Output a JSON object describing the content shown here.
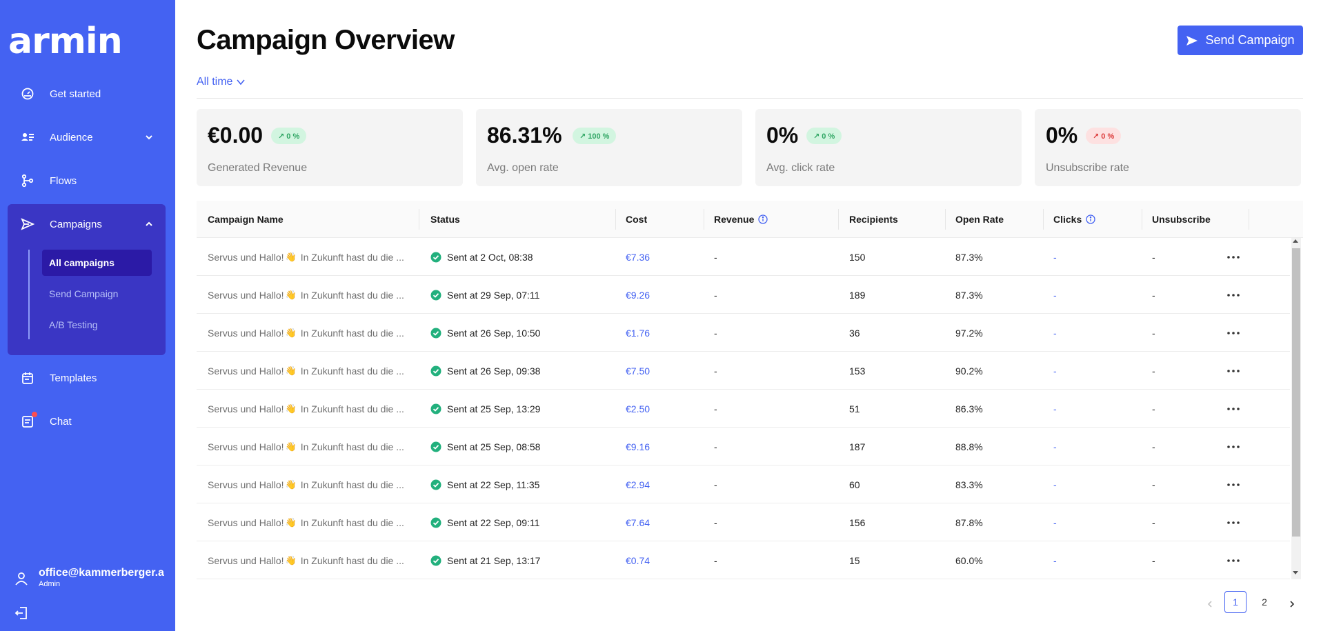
{
  "app": {
    "logo": "armin"
  },
  "sidebar": {
    "items": [
      {
        "label": "Get started",
        "icon": "gauge-icon"
      },
      {
        "label": "Audience",
        "icon": "contacts-icon"
      },
      {
        "label": "Flows",
        "icon": "flow-icon"
      },
      {
        "label": "Campaigns",
        "icon": "send-icon"
      },
      {
        "label": "Templates",
        "icon": "calendar-icon"
      },
      {
        "label": "Chat",
        "icon": "chat-icon"
      }
    ],
    "campaign_sub": [
      {
        "label": "All campaigns",
        "active": true
      },
      {
        "label": "Send Campaign",
        "active": false
      },
      {
        "label": "A/B Testing",
        "active": false
      }
    ],
    "user": {
      "email": "office@kammerberger.a",
      "role": "Admin"
    }
  },
  "header": {
    "title": "Campaign Overview",
    "send_button": "Send Campaign",
    "time_filter": "All time"
  },
  "stats": [
    {
      "value": "€0.00",
      "badge": "↗ 0 %",
      "label": "Generated Revenue",
      "tone": "green"
    },
    {
      "value": "86.31%",
      "badge": "↗ 100 %",
      "label": "Avg. open rate",
      "tone": "green"
    },
    {
      "value": "0%",
      "badge": "↗ 0 %",
      "label": "Avg. click rate",
      "tone": "green"
    },
    {
      "value": "0%",
      "badge": "↗ 0 %",
      "label": "Unsubscribe rate",
      "tone": "red"
    }
  ],
  "table": {
    "columns": [
      "Campaign Name",
      "Status",
      "Cost",
      "Revenue",
      "Recipients",
      "Open Rate",
      "Clicks",
      "Unsubscribe"
    ],
    "rows": [
      {
        "name": "Servus und Hallo!",
        "preview": "In Zukunft hast du die ...",
        "status": "Sent at 2 Oct, 08:38",
        "cost": "€7.36",
        "revenue": "-",
        "recipients": "150",
        "open_rate": "87.3%",
        "clicks": "-",
        "unsubscribe": "-"
      },
      {
        "name": "Servus und Hallo!",
        "preview": "In Zukunft hast du die ...",
        "status": "Sent at 29 Sep, 07:11",
        "cost": "€9.26",
        "revenue": "-",
        "recipients": "189",
        "open_rate": "87.3%",
        "clicks": "-",
        "unsubscribe": "-"
      },
      {
        "name": "Servus und Hallo!",
        "preview": "In Zukunft hast du die ...",
        "status": "Sent at 26 Sep, 10:50",
        "cost": "€1.76",
        "revenue": "-",
        "recipients": "36",
        "open_rate": "97.2%",
        "clicks": "-",
        "unsubscribe": "-"
      },
      {
        "name": "Servus und Hallo!",
        "preview": "In Zukunft hast du die ...",
        "status": "Sent at 26 Sep, 09:38",
        "cost": "€7.50",
        "revenue": "-",
        "recipients": "153",
        "open_rate": "90.2%",
        "clicks": "-",
        "unsubscribe": "-"
      },
      {
        "name": "Servus und Hallo!",
        "preview": "In Zukunft hast du die ...",
        "status": "Sent at 25 Sep, 13:29",
        "cost": "€2.50",
        "revenue": "-",
        "recipients": "51",
        "open_rate": "86.3%",
        "clicks": "-",
        "unsubscribe": "-"
      },
      {
        "name": "Servus und Hallo!",
        "preview": "In Zukunft hast du die ...",
        "status": "Sent at 25 Sep, 08:58",
        "cost": "€9.16",
        "revenue": "-",
        "recipients": "187",
        "open_rate": "88.8%",
        "clicks": "-",
        "unsubscribe": "-"
      },
      {
        "name": "Servus und Hallo!",
        "preview": "In Zukunft hast du die ...",
        "status": "Sent at 22 Sep, 11:35",
        "cost": "€2.94",
        "revenue": "-",
        "recipients": "60",
        "open_rate": "83.3%",
        "clicks": "-",
        "unsubscribe": "-"
      },
      {
        "name": "Servus und Hallo!",
        "preview": "In Zukunft hast du die ...",
        "status": "Sent at 22 Sep, 09:11",
        "cost": "€7.64",
        "revenue": "-",
        "recipients": "156",
        "open_rate": "87.8%",
        "clicks": "-",
        "unsubscribe": "-"
      },
      {
        "name": "Servus und Hallo!",
        "preview": "In Zukunft hast du die ...",
        "status": "Sent at 21 Sep, 13:17",
        "cost": "€0.74",
        "revenue": "-",
        "recipients": "15",
        "open_rate": "60.0%",
        "clicks": "-",
        "unsubscribe": "-"
      }
    ]
  },
  "pagination": {
    "pages": [
      "1",
      "2"
    ],
    "current": "1"
  },
  "colors": {
    "brand": "#4462f2",
    "sidebar_active": "#2b1aa6",
    "success": "#22b07d"
  }
}
